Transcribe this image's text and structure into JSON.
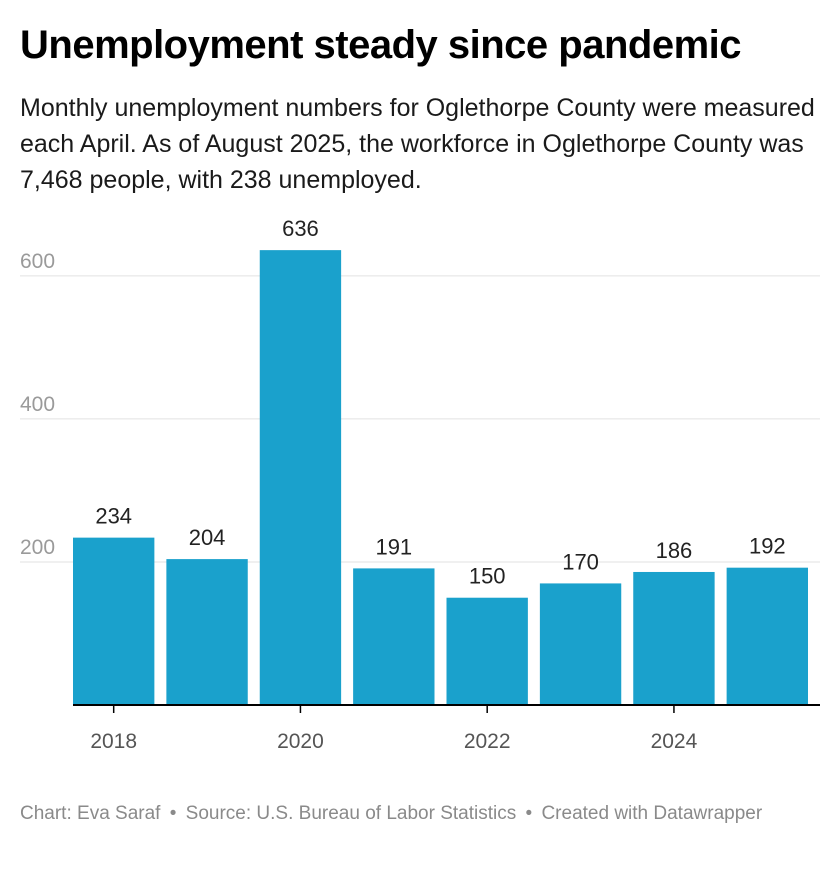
{
  "header": {
    "title": "Unemployment steady since pandemic",
    "subtitle": "Monthly unemployment numbers for Oglethorpe County were measured each April. As of August 2025, the workforce in Oglethorpe County was 7,468 people, with 238 unemployed."
  },
  "chart_data": {
    "type": "bar",
    "categories": [
      "2018",
      "2019",
      "2020",
      "2021",
      "2022",
      "2023",
      "2024",
      "2025"
    ],
    "values": [
      234,
      204,
      636,
      191,
      150,
      170,
      186,
      192
    ],
    "x_tick_labels": [
      "2018",
      "2020",
      "2022",
      "2024"
    ],
    "y_ticks": [
      200,
      400,
      600
    ],
    "ylim": [
      0,
      650
    ],
    "grid": true,
    "bar_color": "#1aa1cc",
    "title": "Unemployment steady since pandemic",
    "xlabel": "",
    "ylabel": ""
  },
  "footer": {
    "credit": "Chart: Eva Saraf",
    "source": "Source: U.S. Bureau of Labor Statistics",
    "created": "Created with Datawrapper",
    "separator": "•"
  }
}
